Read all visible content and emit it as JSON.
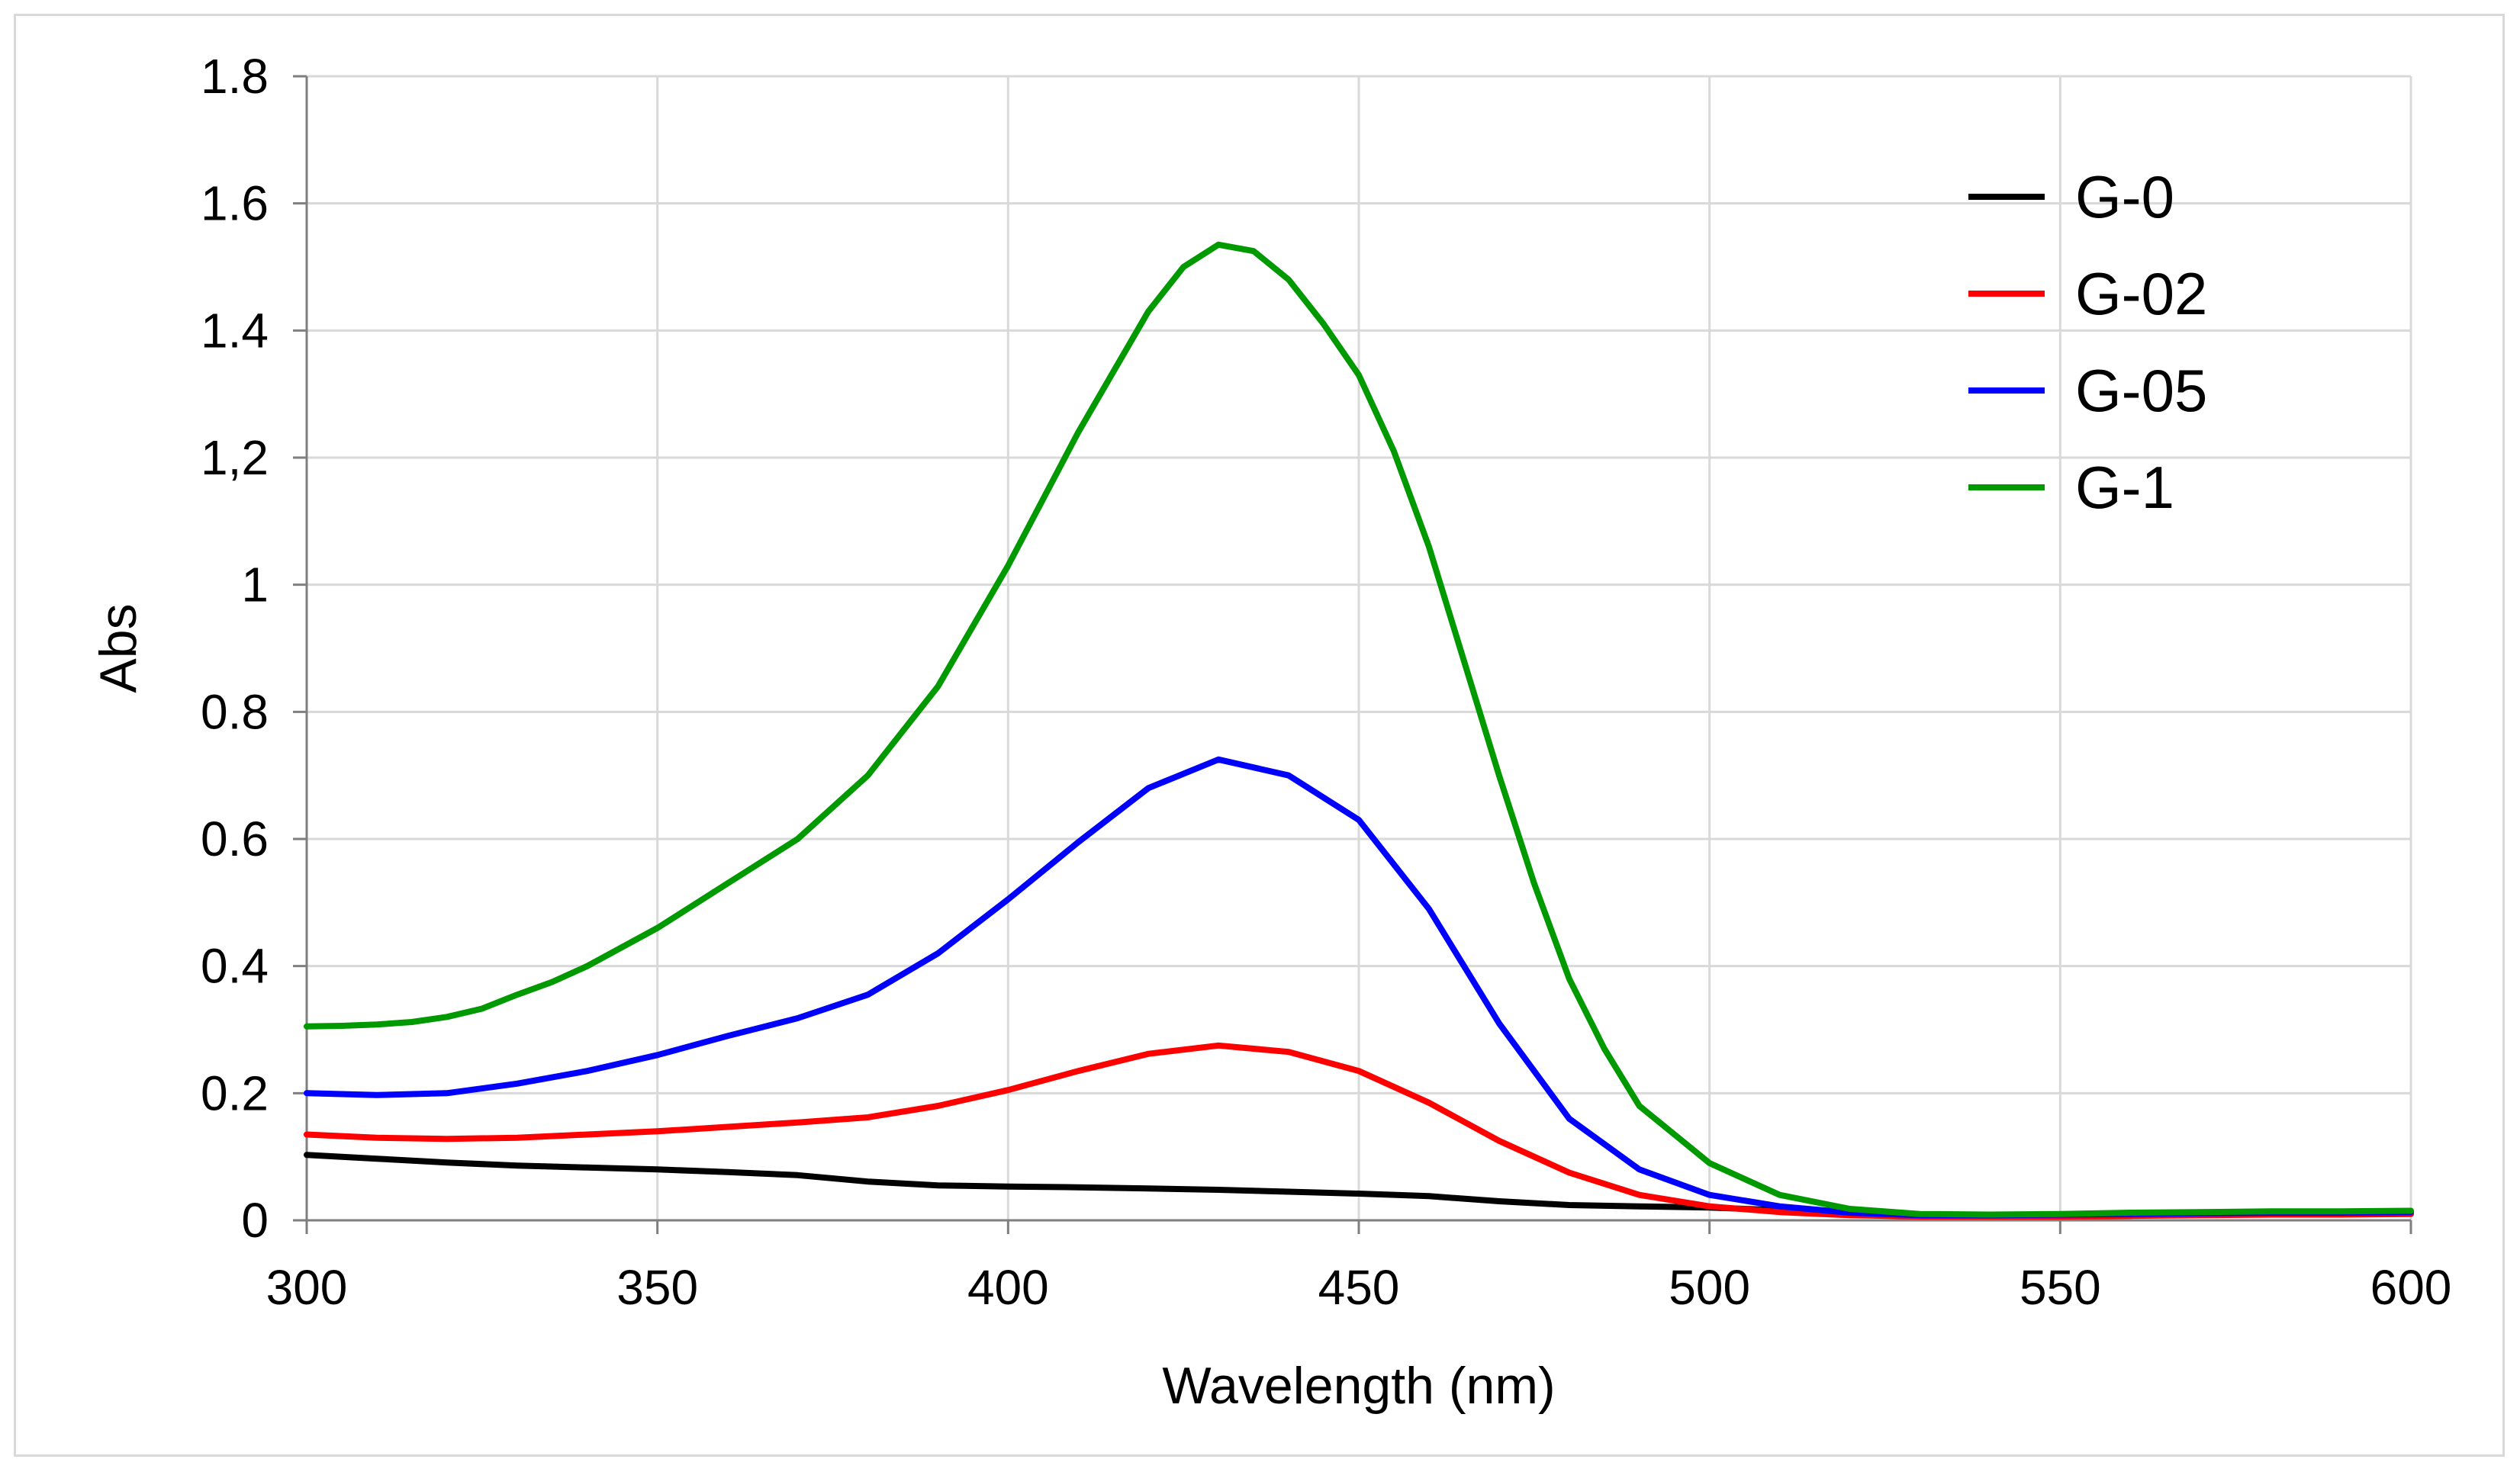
{
  "chart_data": {
    "type": "line",
    "title": "",
    "xlabel": "Wavelength (nm)",
    "ylabel": "Abs",
    "xlim": [
      300,
      600
    ],
    "ylim": [
      0,
      1.8
    ],
    "xticks": [
      300,
      350,
      400,
      450,
      500,
      550,
      600
    ],
    "xtick_labels": [
      "300",
      "350",
      "400",
      "450",
      "500",
      "550",
      "600"
    ],
    "yticks": [
      0,
      0.2,
      0.4,
      0.6,
      0.8,
      1.0,
      1.2,
      1.4,
      1.6,
      1.8
    ],
    "ytick_labels": [
      "0",
      "0.2",
      "0.4",
      "0.6",
      "0.8",
      "1",
      "1,2",
      "1.4",
      "1.6",
      "1.8"
    ],
    "grid": true,
    "legend_position": "top-right",
    "series": [
      {
        "name": "G-0",
        "color": "#000000",
        "x": [
          300,
          310,
          320,
          330,
          340,
          350,
          360,
          370,
          380,
          390,
          400,
          410,
          420,
          430,
          440,
          450,
          460,
          470,
          480,
          490,
          500,
          510,
          520,
          530,
          540,
          550,
          560,
          570,
          580,
          590,
          600
        ],
        "y": [
          0.103,
          0.097,
          0.091,
          0.086,
          0.083,
          0.08,
          0.076,
          0.071,
          0.061,
          0.055,
          0.053,
          0.052,
          0.05,
          0.048,
          0.045,
          0.042,
          0.038,
          0.03,
          0.024,
          0.022,
          0.02,
          0.016,
          0.012,
          0.008,
          0.008,
          0.009,
          0.01,
          0.012,
          0.013,
          0.013,
          0.014
        ]
      },
      {
        "name": "G-02",
        "color": "#ff0000",
        "x": [
          300,
          310,
          320,
          330,
          340,
          350,
          360,
          370,
          380,
          390,
          400,
          410,
          420,
          430,
          440,
          450,
          460,
          470,
          480,
          490,
          500,
          510,
          520,
          530,
          540,
          550,
          560,
          570,
          580,
          590,
          600
        ],
        "y": [
          0.135,
          0.13,
          0.128,
          0.13,
          0.135,
          0.14,
          0.147,
          0.154,
          0.162,
          0.18,
          0.205,
          0.235,
          0.262,
          0.275,
          0.265,
          0.235,
          0.185,
          0.125,
          0.075,
          0.04,
          0.022,
          0.013,
          0.008,
          0.006,
          0.006,
          0.006,
          0.007,
          0.008,
          0.009,
          0.009,
          0.01
        ]
      },
      {
        "name": "G-05",
        "color": "#0000ff",
        "x": [
          300,
          310,
          320,
          330,
          340,
          350,
          360,
          370,
          380,
          390,
          400,
          410,
          420,
          430,
          440,
          450,
          460,
          470,
          480,
          490,
          500,
          510,
          520,
          530,
          540,
          550,
          560,
          570,
          580,
          590,
          600
        ],
        "y": [
          0.2,
          0.197,
          0.2,
          0.215,
          0.235,
          0.26,
          0.29,
          0.318,
          0.355,
          0.42,
          0.505,
          0.595,
          0.68,
          0.725,
          0.7,
          0.63,
          0.49,
          0.31,
          0.16,
          0.08,
          0.04,
          0.022,
          0.012,
          0.008,
          0.008,
          0.009,
          0.01,
          0.011,
          0.012,
          0.012,
          0.013
        ]
      },
      {
        "name": "G-1",
        "color": "#009900",
        "x": [
          300,
          305,
          310,
          315,
          320,
          325,
          330,
          335,
          340,
          350,
          360,
          370,
          380,
          390,
          400,
          410,
          420,
          425,
          430,
          435,
          440,
          445,
          450,
          455,
          460,
          465,
          470,
          475,
          480,
          485,
          490,
          500,
          510,
          520,
          530,
          540,
          550,
          560,
          570,
          580,
          590,
          600
        ],
        "y": [
          0.305,
          0.306,
          0.308,
          0.312,
          0.32,
          0.333,
          0.355,
          0.375,
          0.4,
          0.46,
          0.53,
          0.6,
          0.7,
          0.84,
          1.03,
          1.24,
          1.43,
          1.5,
          1.535,
          1.525,
          1.48,
          1.41,
          1.33,
          1.21,
          1.06,
          0.88,
          0.7,
          0.53,
          0.38,
          0.27,
          0.18,
          0.09,
          0.04,
          0.018,
          0.01,
          0.009,
          0.01,
          0.012,
          0.013,
          0.014,
          0.014,
          0.015
        ]
      }
    ]
  }
}
